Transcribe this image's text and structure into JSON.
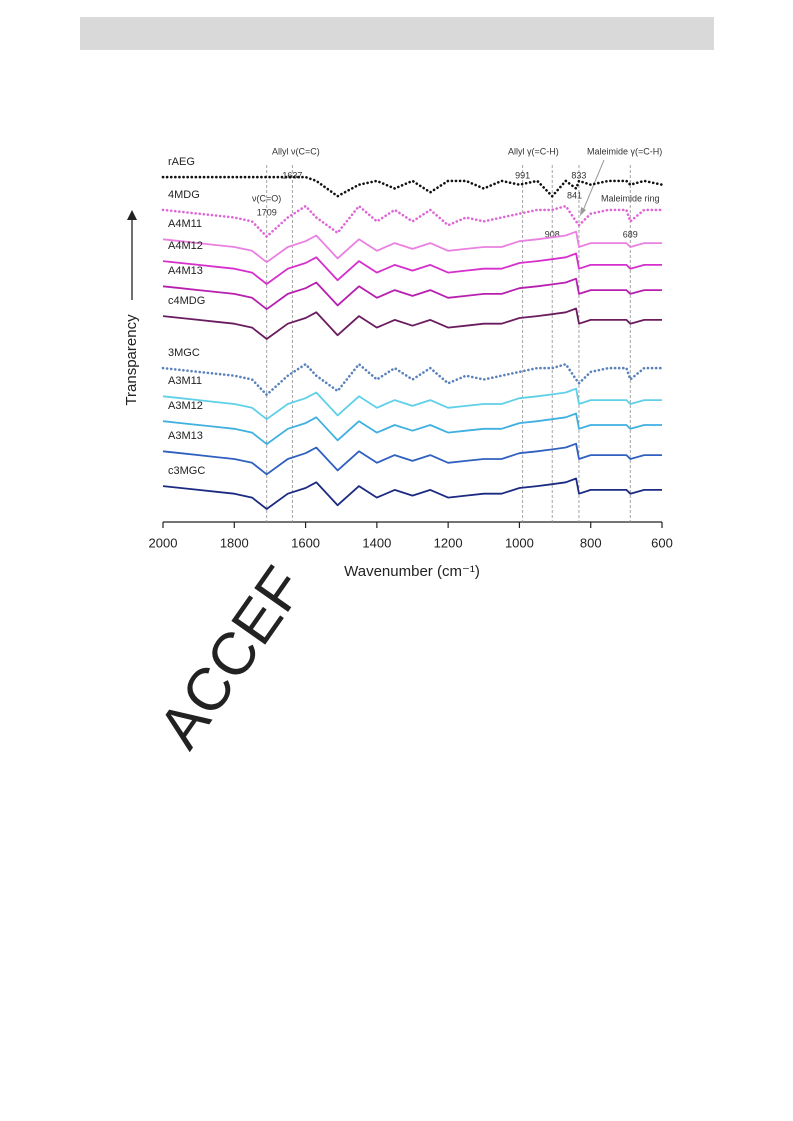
{
  "header_bar": {},
  "watermark": "ACCEF",
  "chart_data": {
    "type": "line",
    "x_label": "Wavenumber (cm⁻¹)",
    "y_label": "Transparency",
    "xlim": [
      2000,
      600
    ],
    "xticks": [
      2000,
      1800,
      1600,
      1400,
      1200,
      1000,
      800,
      600
    ],
    "ylim": [
      0,
      100
    ],
    "x": [
      2000,
      1950,
      1900,
      1850,
      1800,
      1750,
      1709,
      1650,
      1600,
      1570,
      1510,
      1450,
      1400,
      1350,
      1300,
      1250,
      1200,
      1150,
      1100,
      1050,
      1000,
      950,
      908,
      870,
      841,
      833,
      800,
      750,
      700,
      689,
      650,
      600
    ],
    "reference_lines": [
      1709,
      1637,
      991,
      908,
      833,
      689
    ],
    "annotations": [
      "ν(C=O)",
      "Allyl ν(C=C)",
      "Allyl γ(=C-H)",
      "Maleimide γ(=C-H)",
      "841",
      "Maleimide ring"
    ],
    "series": [
      {
        "name": "rAEG",
        "color": "#111111",
        "style": "dotted",
        "values": [
          90.3,
          90.3,
          90.3,
          90.3,
          90.3,
          90.3,
          90.3,
          90.3,
          90.3,
          89.3,
          85.3,
          88.3,
          89.3,
          87.3,
          89.3,
          86.3,
          89.3,
          89.3,
          87.3,
          89.3,
          88.3,
          89.3,
          85.3,
          89.3,
          87.3,
          89.3,
          88.3,
          89.3,
          89.3,
          88.3,
          89.3,
          88.3
        ]
      },
      {
        "name": "4MDG",
        "color": "#e065d6",
        "style": "dotted",
        "values": [
          81.7,
          81.2,
          80.7,
          80.2,
          79.7,
          78.7,
          74.7,
          79.7,
          82.7,
          79.7,
          75.7,
          82.7,
          78.7,
          81.7,
          78.7,
          81.7,
          77.7,
          79.7,
          78.7,
          79.7,
          80.7,
          81.7,
          81.7,
          82.7,
          78.7,
          77.7,
          80.7,
          81.7,
          81.7,
          78.7,
          81.7,
          81.7
        ]
      },
      {
        "name": "A4M11",
        "color": "#ea80e2",
        "style": "solid",
        "values": [
          74,
          73.5,
          73,
          72.5,
          72,
          71,
          68,
          72,
          73.5,
          75,
          69,
          74,
          71,
          73,
          71.5,
          73,
          71,
          71.5,
          72,
          72,
          73.5,
          74,
          74.5,
          75,
          76,
          72,
          73,
          73,
          73,
          72,
          73,
          73
        ]
      },
      {
        "name": "A4M12",
        "color": "#d62fcc",
        "style": "solid",
        "values": [
          68.3,
          67.8,
          67.3,
          66.8,
          66.3,
          65.3,
          62.3,
          66.3,
          67.8,
          69.3,
          63.3,
          68.3,
          65.3,
          67.3,
          65.8,
          67.3,
          65.3,
          65.8,
          66.3,
          66.3,
          67.8,
          68.3,
          68.8,
          69.3,
          70.3,
          66.3,
          67.3,
          67.3,
          67.3,
          66.3,
          67.3,
          67.3
        ]
      },
      {
        "name": "A4M13",
        "color": "#b81fae",
        "style": "solid",
        "values": [
          61.7,
          61.2,
          60.7,
          60.2,
          59.7,
          58.7,
          55.7,
          59.7,
          61.2,
          62.7,
          56.7,
          61.7,
          58.7,
          60.7,
          59.2,
          60.7,
          58.7,
          59.2,
          59.7,
          59.7,
          61.2,
          61.7,
          62.2,
          62.7,
          63.7,
          59.7,
          60.7,
          60.7,
          60.7,
          59.7,
          60.7,
          60.7
        ]
      },
      {
        "name": "c4MDG",
        "color": "#6a1c5e",
        "style": "solid",
        "values": [
          53.9,
          53.4,
          52.9,
          52.4,
          51.9,
          50.9,
          47.9,
          51.9,
          53.4,
          54.9,
          48.9,
          53.9,
          50.9,
          52.9,
          51.4,
          52.9,
          50.9,
          51.4,
          51.9,
          51.9,
          53.4,
          53.9,
          54.4,
          54.9,
          55.9,
          51.9,
          52.9,
          52.9,
          52.9,
          51.9,
          52.9,
          52.9
        ]
      },
      {
        "name": "3MGC",
        "color": "#5a82ba",
        "style": "dotted",
        "values": [
          40.3,
          39.8,
          39.3,
          38.8,
          38.3,
          37.3,
          33.3,
          38.3,
          41.3,
          38.3,
          34.3,
          41.3,
          37.3,
          40.3,
          37.3,
          40.3,
          36.3,
          38.3,
          37.3,
          38.3,
          39.3,
          40.3,
          40.3,
          41.3,
          37.3,
          36.3,
          39.3,
          40.3,
          40.3,
          37.3,
          40.3,
          40.3
        ]
      },
      {
        "name": "A3M11",
        "color": "#5fd0e8",
        "style": "solid",
        "values": [
          32.9,
          32.4,
          31.9,
          31.4,
          30.9,
          29.9,
          26.9,
          30.9,
          32.4,
          33.9,
          27.9,
          32.9,
          29.9,
          31.9,
          30.4,
          31.9,
          29.9,
          30.4,
          30.9,
          30.9,
          32.4,
          32.9,
          33.4,
          33.9,
          34.9,
          30.9,
          31.9,
          31.9,
          31.9,
          30.9,
          31.9,
          31.9
        ]
      },
      {
        "name": "A3M12",
        "color": "#3fb0e0",
        "style": "solid",
        "values": [
          26.4,
          25.9,
          25.4,
          24.9,
          24.4,
          23.4,
          20.4,
          24.4,
          25.9,
          27.4,
          21.4,
          26.4,
          23.4,
          25.4,
          23.9,
          25.4,
          23.4,
          23.9,
          24.4,
          24.4,
          25.9,
          26.4,
          26.9,
          27.4,
          28.4,
          24.4,
          25.4,
          25.4,
          25.4,
          24.4,
          25.4,
          25.4
        ]
      },
      {
        "name": "A3M13",
        "color": "#3060c0",
        "style": "solid",
        "values": [
          18.5,
          18,
          17.5,
          17,
          16.5,
          15.5,
          12.5,
          16.5,
          18,
          19.5,
          13.5,
          18.5,
          15.5,
          17.5,
          16,
          17.5,
          15.5,
          16,
          16.5,
          16.5,
          18,
          18.5,
          19,
          19.5,
          20.5,
          16.5,
          17.5,
          17.5,
          17.5,
          16.5,
          17.5,
          17.5
        ]
      },
      {
        "name": "c3MGC",
        "color": "#1c2a82",
        "style": "solid",
        "values": [
          9.4,
          8.9,
          8.4,
          7.9,
          7.4,
          6.4,
          3.4,
          7.4,
          8.9,
          10.4,
          4.4,
          9.4,
          6.4,
          8.4,
          6.9,
          8.4,
          6.4,
          6.9,
          7.4,
          7.4,
          8.9,
          9.4,
          9.9,
          10.4,
          11.4,
          7.4,
          8.4,
          8.4,
          8.4,
          7.4,
          8.4,
          8.4
        ]
      }
    ]
  }
}
